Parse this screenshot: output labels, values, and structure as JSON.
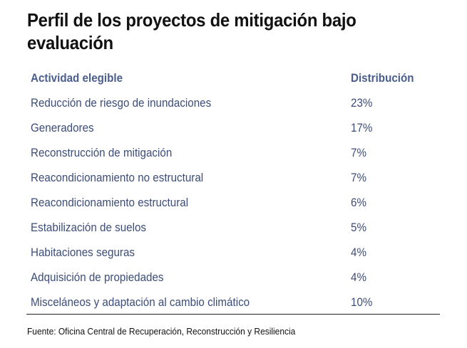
{
  "chart_data": {
    "type": "table",
    "title": "Perfil de los proyectos de mitigación bajo evaluación",
    "columns": [
      "Actividad elegible",
      "Distribución"
    ],
    "rows": [
      {
        "label": "Reducción de riesgo de inundaciones",
        "value": "23%"
      },
      {
        "label": "Generadores",
        "value": "17%"
      },
      {
        "label": "Reconstrucción de mitigación",
        "value": "7%"
      },
      {
        "label": "Reacondicionamiento no estructural",
        "value": "7%"
      },
      {
        "label": "Reacondicionamiento estructural",
        "value": "6%"
      },
      {
        "label": "Estabilización de suelos",
        "value": "5%"
      },
      {
        "label": "Habitaciones seguras",
        "value": "4%"
      },
      {
        "label": "Adquisición de propiedades",
        "value": "4%"
      },
      {
        "label": "Misceláneos y adaptación al cambio climático",
        "value": "10%"
      }
    ],
    "source": "Fuente: Oficina Central de Recuperación, Reconstrucción y Resiliencia"
  },
  "colors": {
    "title": "#111111",
    "header_text": "#4a5e8e",
    "body_text": "#3c4d78",
    "rule": "#222222"
  }
}
